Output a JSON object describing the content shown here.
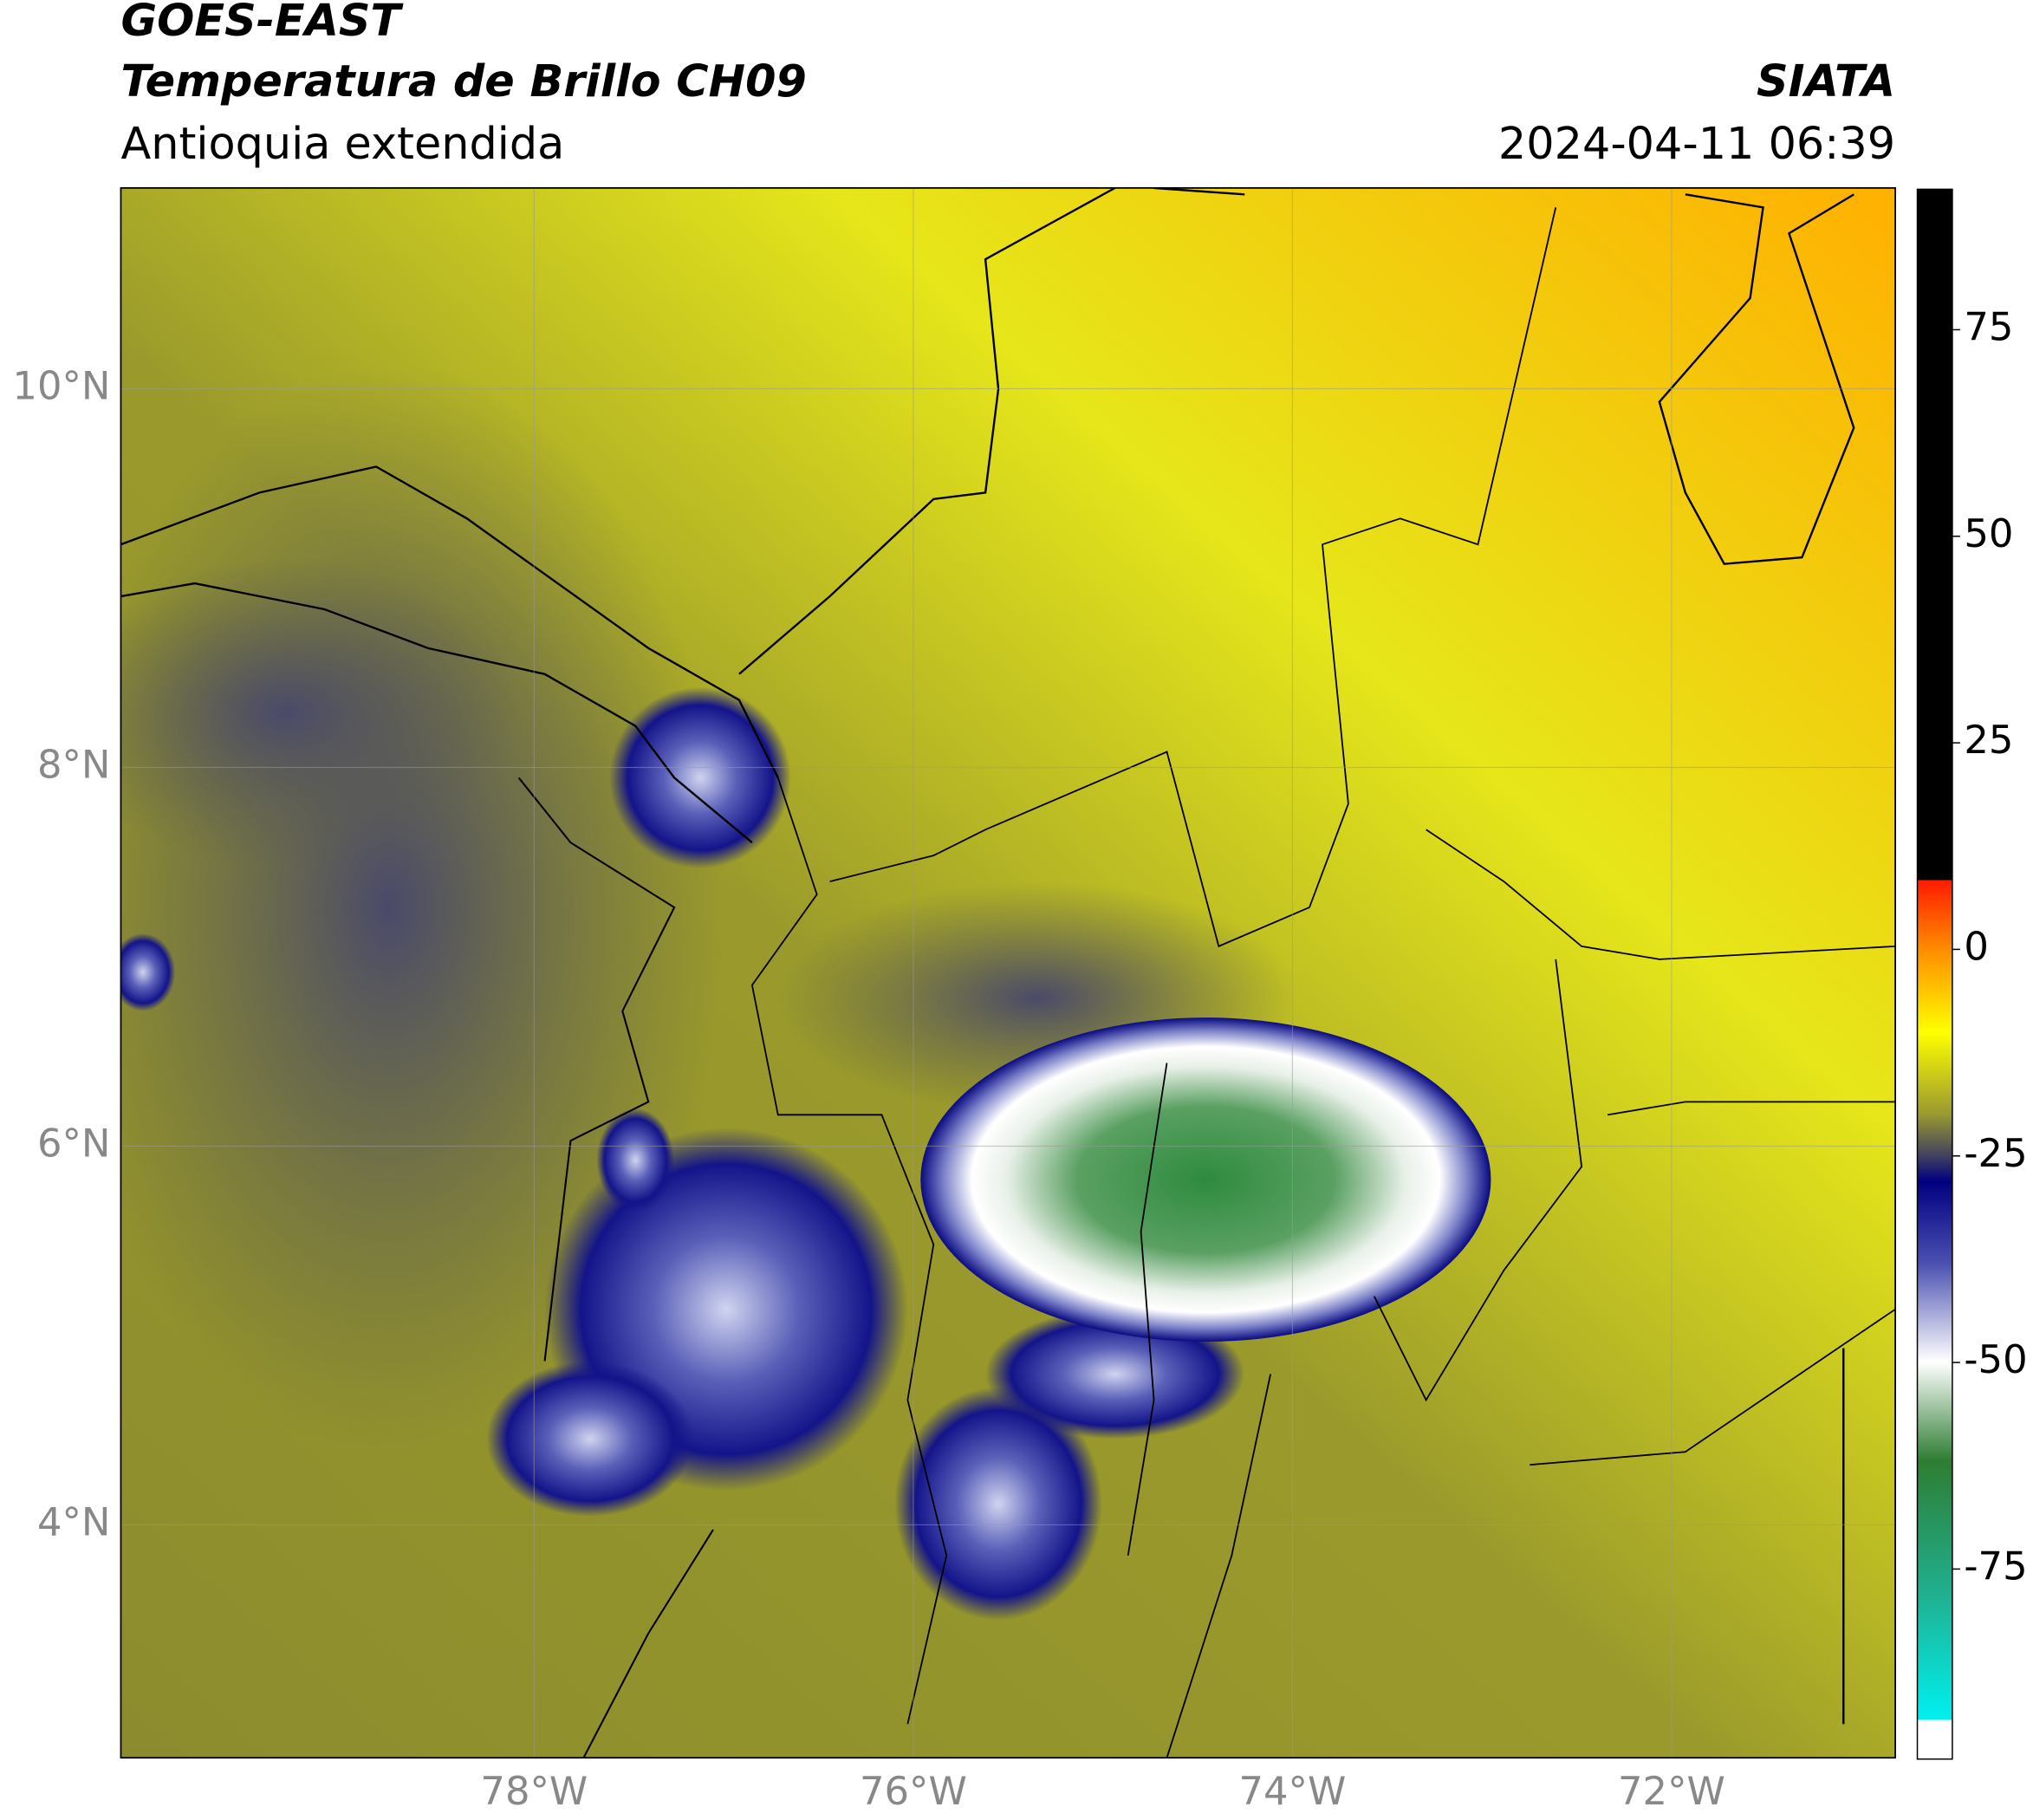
{
  "header": {
    "satellite": "GOES-EAST",
    "product": "Temperatura de Brillo CH09",
    "region": "Antioquia extendida",
    "agency": "SIATA",
    "datetime": "2024-04-11 06:39"
  },
  "map": {
    "xlim": [
      -80.18,
      -70.82
    ],
    "ylim": [
      2.77,
      11.06
    ],
    "xticks": [
      {
        "value": -78,
        "label": "78°W"
      },
      {
        "value": -76,
        "label": "76°W"
      },
      {
        "value": -74,
        "label": "74°W"
      },
      {
        "value": -72,
        "label": "72°W"
      }
    ],
    "yticks": [
      {
        "value": 4,
        "label": "4°N"
      },
      {
        "value": 6,
        "label": "6°N"
      },
      {
        "value": 8,
        "label": "8°N"
      },
      {
        "value": 10,
        "label": "10°N"
      }
    ],
    "grid": true
  },
  "colorbar": {
    "lim": [
      -98,
      92
    ],
    "ticks": [
      -75,
      -50,
      -25,
      0,
      25,
      50,
      75
    ]
  }
}
